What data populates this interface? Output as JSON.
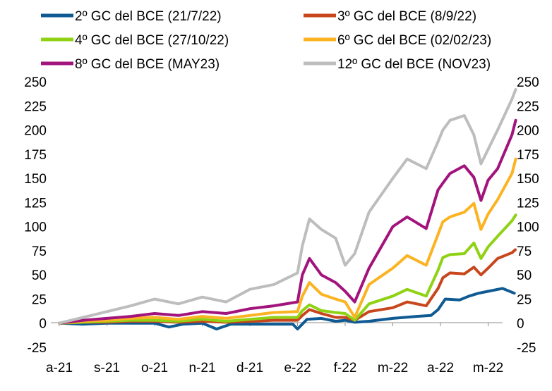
{
  "chart_data": {
    "type": "line",
    "title": "",
    "xlabel": "",
    "ylabel": "",
    "ylim": [
      -25,
      250
    ],
    "y_ticks": [
      "250",
      "225",
      "200",
      "175",
      "150",
      "125",
      "100",
      "75",
      "50",
      "25",
      "0",
      "-25"
    ],
    "y_tick_values": [
      250,
      225,
      200,
      175,
      150,
      125,
      100,
      75,
      50,
      25,
      0,
      -25
    ],
    "x_ticks": [
      "a-21",
      "s-21",
      "o-21",
      "n-21",
      "d-21",
      "e-22",
      "f-22",
      "m-22",
      "a-22",
      "m-22"
    ],
    "x_tick_positions": [
      0,
      1,
      2,
      3,
      4,
      5,
      6,
      7,
      8,
      9
    ],
    "x_range": [
      0,
      9.6
    ],
    "legend_position": "top",
    "grid": false,
    "series": [
      {
        "name": "2º GC del BCE (21/7/22)",
        "color": "#0f5a93",
        "x": [
          0,
          0.5,
          1,
          1.5,
          2,
          2.3,
          2.6,
          3,
          3.3,
          3.6,
          4,
          4.5,
          4.9,
          5.0,
          5.2,
          5.5,
          5.8,
          6.0,
          6.2,
          6.5,
          7.0,
          7.5,
          7.8,
          7.95,
          8.1,
          8.4,
          8.6,
          8.8,
          9.0,
          9.3,
          9.55
        ],
        "values": [
          0,
          -1,
          0,
          0,
          0,
          -4,
          -1,
          0,
          -6,
          -1,
          -1,
          -1,
          -1,
          -6,
          4,
          5,
          2,
          3,
          1,
          2,
          5,
          7,
          8,
          14,
          25,
          24,
          28,
          31,
          33,
          36,
          31
        ]
      },
      {
        "name": "3º GC del BCE (8/9/22)",
        "color": "#c8461c",
        "x": [
          0,
          0.5,
          1,
          1.5,
          2,
          2.5,
          3,
          3.5,
          4,
          4.5,
          5.0,
          5.1,
          5.25,
          5.5,
          5.8,
          6.0,
          6.2,
          6.5,
          7.0,
          7.3,
          7.7,
          7.95,
          8.05,
          8.2,
          8.5,
          8.7,
          8.85,
          9.0,
          9.2,
          9.5,
          9.57
        ],
        "values": [
          0,
          1,
          1,
          2,
          2,
          1,
          2,
          1,
          2,
          3,
          3,
          8,
          14,
          10,
          6,
          6,
          3,
          12,
          16,
          22,
          18,
          36,
          47,
          52,
          51,
          58,
          50,
          57,
          67,
          73,
          76
        ]
      },
      {
        "name": "4º GC del BCE (27/10/22)",
        "color": "#8fd214",
        "x": [
          0,
          0.5,
          1,
          1.5,
          2,
          2.5,
          3,
          3.5,
          4,
          4.5,
          5.0,
          5.1,
          5.25,
          5.5,
          5.8,
          6.0,
          6.2,
          6.5,
          7.0,
          7.3,
          7.7,
          7.95,
          8.05,
          8.2,
          8.5,
          8.7,
          8.85,
          9.0,
          9.2,
          9.5,
          9.58
        ],
        "values": [
          0,
          1,
          2,
          3,
          3,
          2,
          4,
          2,
          4,
          6,
          6,
          13,
          19,
          13,
          11,
          10,
          3,
          20,
          28,
          35,
          28,
          55,
          68,
          71,
          72,
          83,
          67,
          79,
          90,
          106,
          112
        ]
      },
      {
        "name": "6º GC del BCE (02/02/23)",
        "color": "#fbb321",
        "x": [
          0,
          0.5,
          1,
          1.5,
          2,
          2.5,
          3,
          3.5,
          4,
          4.5,
          5.0,
          5.1,
          5.25,
          5.5,
          5.8,
          6.0,
          6.2,
          6.5,
          7.0,
          7.3,
          7.7,
          7.95,
          8.05,
          8.2,
          8.5,
          8.7,
          8.85,
          9.0,
          9.2,
          9.5,
          9.58
        ],
        "values": [
          0,
          2,
          3,
          5,
          6,
          4,
          7,
          5,
          8,
          11,
          12,
          28,
          42,
          30,
          25,
          22,
          6,
          40,
          57,
          70,
          60,
          92,
          105,
          110,
          115,
          124,
          97,
          113,
          128,
          155,
          170
        ]
      },
      {
        "name": "8º GC del BCE (MAY23)",
        "color": "#a2137c",
        "x": [
          0,
          0.5,
          1,
          1.5,
          2,
          2.5,
          3,
          3.5,
          4,
          4.5,
          5.0,
          5.1,
          5.25,
          5.5,
          5.8,
          6.0,
          6.2,
          6.5,
          7.0,
          7.3,
          7.7,
          7.95,
          8.05,
          8.2,
          8.5,
          8.7,
          8.85,
          9.0,
          9.2,
          9.5,
          9.58
        ],
        "values": [
          0,
          3,
          5,
          7,
          10,
          8,
          12,
          10,
          15,
          18,
          22,
          50,
          67,
          50,
          42,
          33,
          22,
          57,
          100,
          110,
          98,
          138,
          145,
          155,
          163,
          151,
          127,
          148,
          160,
          195,
          210
        ]
      },
      {
        "name": "12º GC del BCE (NOV23)",
        "color": "#bdbdbd",
        "x": [
          0,
          0.5,
          1,
          1.5,
          2,
          2.5,
          3,
          3.5,
          4,
          4.5,
          5.0,
          5.1,
          5.25,
          5.5,
          5.8,
          6.0,
          6.2,
          6.5,
          7.0,
          7.3,
          7.7,
          7.95,
          8.05,
          8.2,
          8.5,
          8.7,
          8.85,
          9.0,
          9.2,
          9.5,
          9.58
        ],
        "values": [
          0,
          6,
          12,
          18,
          25,
          20,
          27,
          22,
          35,
          40,
          52,
          80,
          108,
          97,
          88,
          60,
          72,
          115,
          150,
          170,
          160,
          188,
          200,
          210,
          215,
          195,
          165,
          180,
          200,
          232,
          242
        ]
      }
    ]
  }
}
